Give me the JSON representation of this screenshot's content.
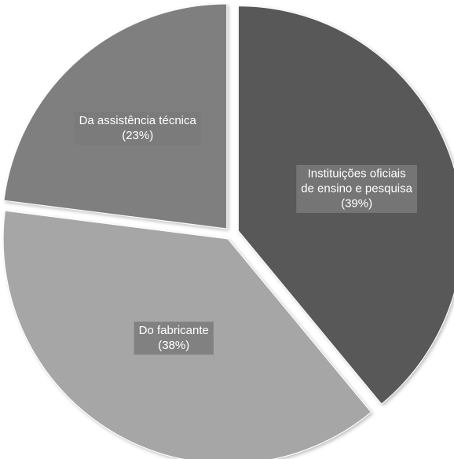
{
  "chart_data": {
    "type": "pie",
    "exploded": true,
    "slices": [
      {
        "name": "Instituições oficiais de ensino e pesquisa",
        "label_lines": [
          "Instituições oficiais",
          "de ensino e pesquisa",
          "(39%)"
        ],
        "value": 39,
        "color": "#595959"
      },
      {
        "name": "Do fabricante",
        "label_lines": [
          "Do fabricante",
          "(38%)"
        ],
        "value": 38,
        "color": "#a6a6a6"
      },
      {
        "name": "Da assistência técnica",
        "label_lines": [
          "Da assistência técnica",
          "(23%)"
        ],
        "value": 23,
        "color": "#7f7f7f"
      }
    ],
    "start_angle": "12 o'clock",
    "direction": "clockwise"
  }
}
